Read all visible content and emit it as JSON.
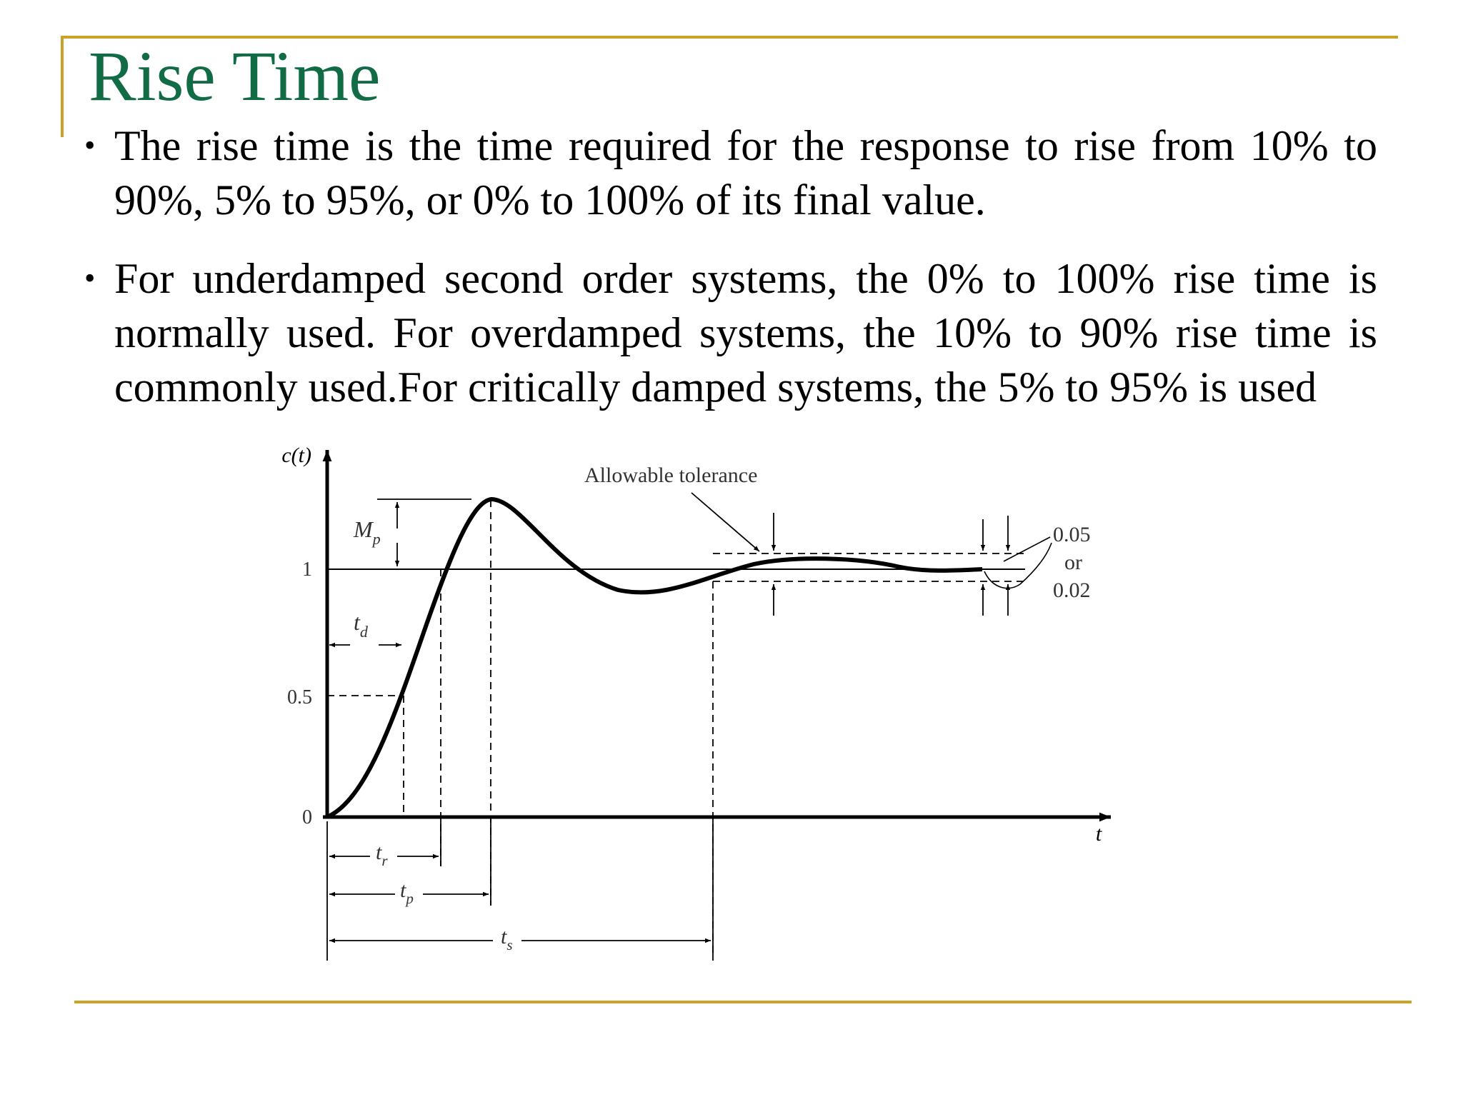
{
  "slide": {
    "title": "Rise Time",
    "bullets": [
      "The rise time is the time required for the response to rise from 10% to 90%, 5% to 95%, or 0% to 100% of its final value.",
      "For underdamped second order systems, the 0% to 100% rise time is normally used. For overdamped systems, the 10% to 90% rise time is commonly used.For critically damped systems, the 5% to 95% is used"
    ],
    "bullet_glyph": "•"
  },
  "theme": {
    "title_color": "#116b45",
    "frame_color": "#c9a227"
  },
  "diagram": {
    "y_axis_label": "c(t)",
    "x_axis_label": "t",
    "y_ticks": [
      "0",
      "0.5",
      "1"
    ],
    "annotation": "Allowable tolerance",
    "tolerance_values": [
      "0.05",
      "or",
      "0.02"
    ],
    "markers": {
      "Mp": {
        "base": "M",
        "sub": "p"
      },
      "td": {
        "base": "t",
        "sub": "d"
      },
      "tr": {
        "base": "t",
        "sub": "r"
      },
      "tp": {
        "base": "t",
        "sub": "p"
      },
      "ts": {
        "base": "t",
        "sub": "s"
      }
    }
  }
}
